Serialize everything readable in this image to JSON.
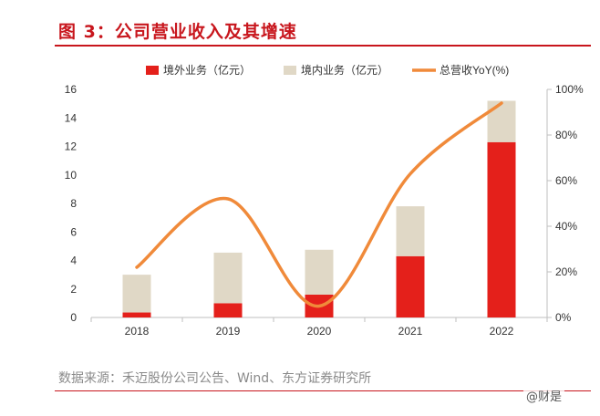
{
  "title": "图 3：公司营业收入及其增速",
  "source": "数据来源：禾迈股份公司公告、Wind、东方证券研究所",
  "watermark": "@财是",
  "colors": {
    "overseas": "#e4201b",
    "domestic": "#e0d8c6",
    "yoy": "#f08a3a",
    "title": "#c8161d"
  },
  "chart_data": {
    "type": "bar",
    "stacked": true,
    "categories": [
      "2018",
      "2019",
      "2020",
      "2021",
      "2022"
    ],
    "series": [
      {
        "name": "境外业务（亿元）",
        "type": "bar",
        "axis": "left",
        "values": [
          0.35,
          1.0,
          1.6,
          4.3,
          12.3
        ]
      },
      {
        "name": "境内业务（亿元）",
        "type": "bar",
        "axis": "left",
        "values": [
          2.65,
          3.55,
          3.15,
          3.5,
          2.9
        ]
      },
      {
        "name": "总营收YoY(%)",
        "type": "line",
        "axis": "right",
        "values": [
          22,
          52,
          5,
          63,
          94
        ]
      }
    ],
    "ylim": [
      0,
      16
    ],
    "yticks": [
      "0",
      "2",
      "4",
      "6",
      "8",
      "10",
      "12",
      "14",
      "16"
    ],
    "y2lim": [
      0,
      100
    ],
    "y2ticks": [
      "0%",
      "20%",
      "40%",
      "60%",
      "80%",
      "100%"
    ],
    "legend_position": "top",
    "grid": false
  }
}
